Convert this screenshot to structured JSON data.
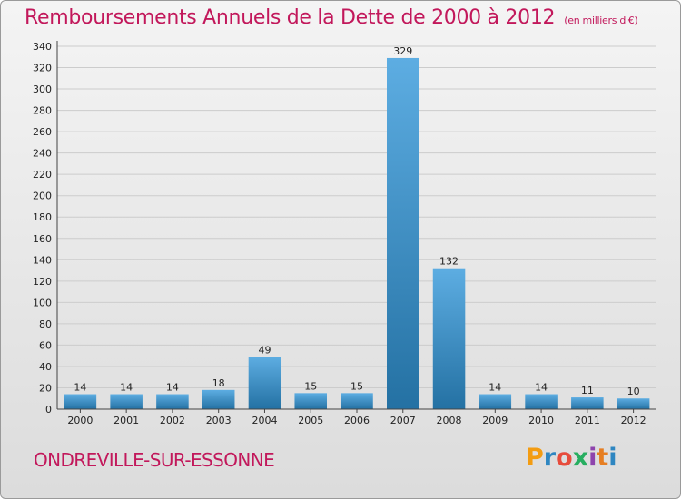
{
  "title": "Remboursements Annuels de la Dette de 2000 à 2012",
  "unit": "(en milliers d'€)",
  "commune": "ONDREVILLE-SUR-ESSONNE",
  "logo": {
    "text": "Proxiti",
    "letter_colors": [
      "#f39c12",
      "#2e86c1",
      "#e74c3c",
      "#27ae60",
      "#8e44ad",
      "#e67e22",
      "#2e86c1"
    ]
  },
  "colors": {
    "title": "#c2185b",
    "bar_light": "#5dade2",
    "bar_dark": "#2471a3",
    "grid": "#cccccc"
  },
  "chart_data": {
    "type": "bar",
    "categories": [
      "2000",
      "2001",
      "2002",
      "2003",
      "2004",
      "2005",
      "2006",
      "2007",
      "2008",
      "2009",
      "2010",
      "2011",
      "2012"
    ],
    "values": [
      14,
      14,
      14,
      18,
      49,
      15,
      15,
      329,
      132,
      14,
      14,
      11,
      10
    ],
    "ylim": [
      0,
      340
    ],
    "yticks": [
      0,
      20,
      40,
      60,
      80,
      100,
      120,
      140,
      160,
      180,
      200,
      220,
      240,
      260,
      280,
      300,
      320,
      340
    ],
    "grid": true
  }
}
